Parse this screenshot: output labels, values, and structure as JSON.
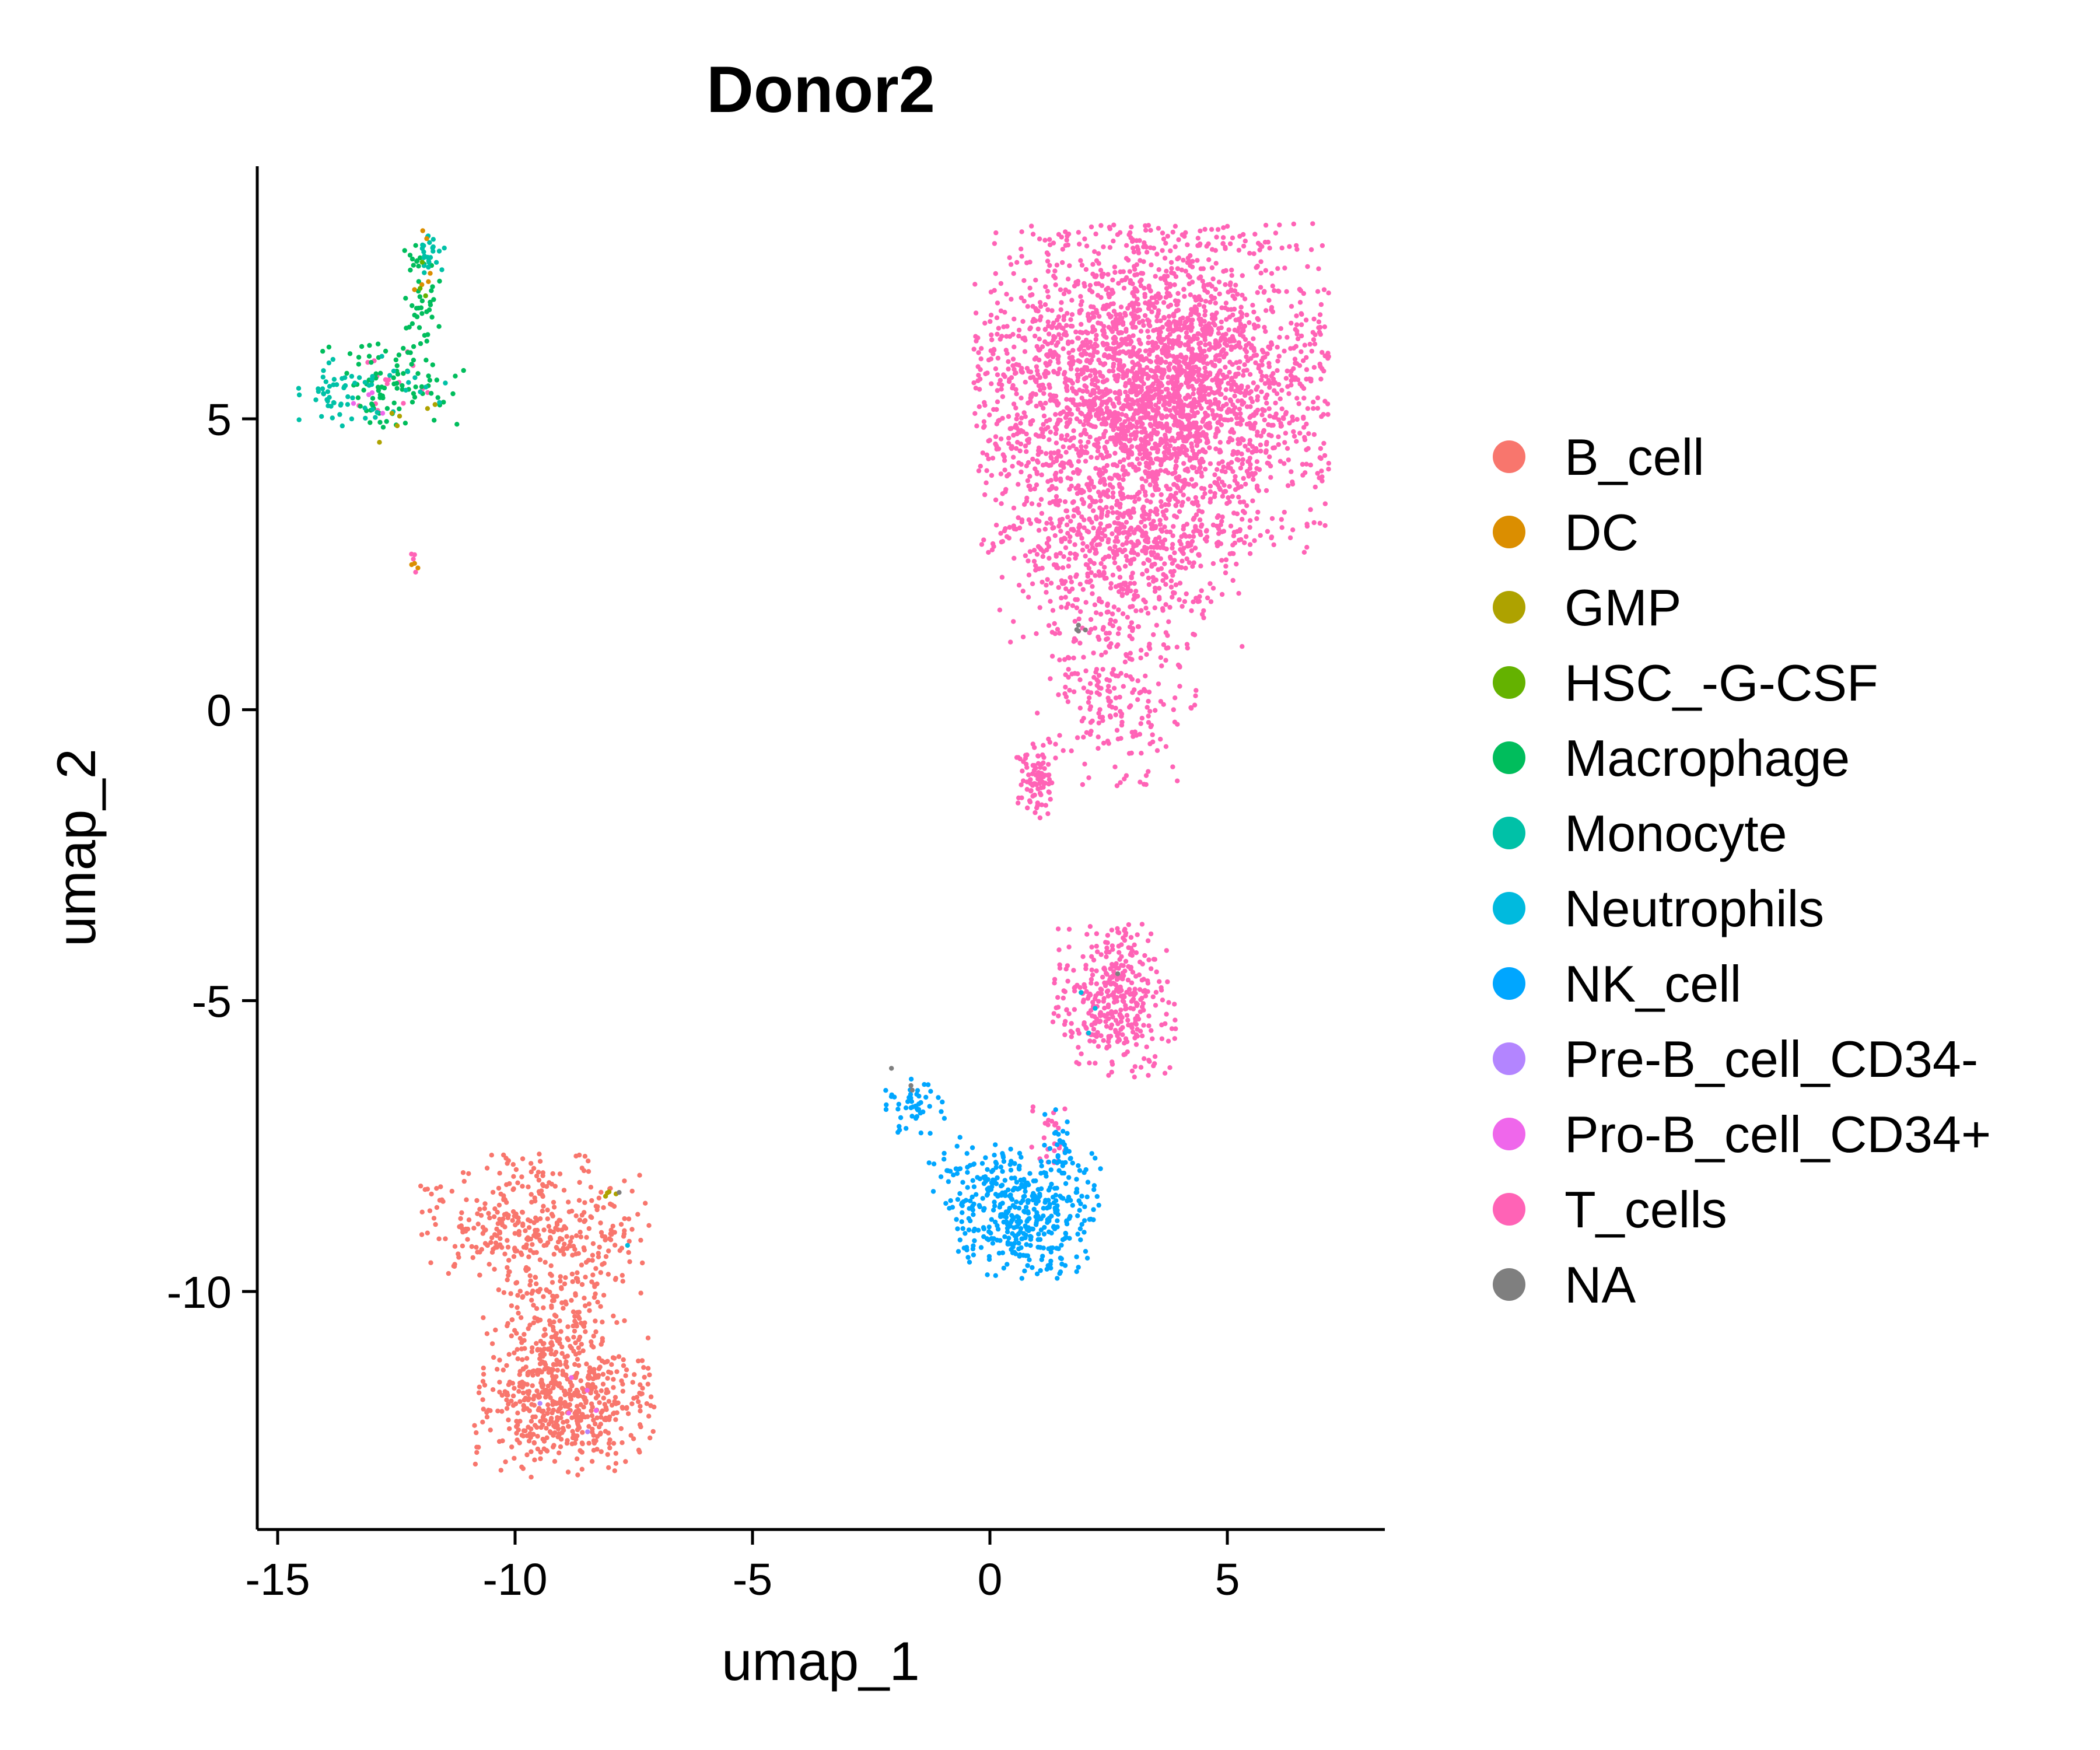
{
  "chart_data": {
    "type": "scatter",
    "title": "Donor2",
    "xlabel": "umap_1",
    "ylabel": "umap_2",
    "xlim": [
      -15.4,
      8.5
    ],
    "ylim": [
      -13.9,
      9.3
    ],
    "xticks": [
      -15,
      -10,
      -5,
      0,
      5
    ],
    "xtick_labels": [
      "-15",
      "-10",
      "-5",
      "0",
      "5"
    ],
    "yticks": [
      5,
      0,
      -5,
      -10
    ],
    "ytick_labels": [
      "5",
      "0",
      "-5",
      "-10"
    ],
    "grid": false,
    "legend_position": "right",
    "series": [
      {
        "name": "B_cell",
        "color": "#F8766D",
        "clusters": [
          {
            "cx": -9.6,
            "cy": -8.9,
            "sx": 1.1,
            "sy": 0.6,
            "n": 350
          },
          {
            "cx": -9.2,
            "cy": -10.7,
            "sx": 0.7,
            "sy": 0.9,
            "n": 300
          },
          {
            "cx": -9.0,
            "cy": -12.0,
            "sx": 0.9,
            "sy": 0.55,
            "n": 450
          }
        ]
      },
      {
        "name": "DC",
        "color": "#DB8E00",
        "clusters": [
          {
            "cx": -11.8,
            "cy": 7.8,
            "sx": 0.15,
            "sy": 0.3,
            "n": 6
          },
          {
            "cx": -12.1,
            "cy": 2.45,
            "sx": 0.05,
            "sy": 0.1,
            "n": 3
          }
        ]
      },
      {
        "name": "GMP",
        "color": "#AEA200",
        "clusters": [
          {
            "cx": -8.0,
            "cy": -8.3,
            "sx": 0.08,
            "sy": 0.05,
            "n": 4
          },
          {
            "cx": -12.2,
            "cy": 5.0,
            "sx": 0.4,
            "sy": 0.3,
            "n": 6
          }
        ]
      },
      {
        "name": "HSC_-G-CSF",
        "color": "#64B200",
        "clusters": [
          {
            "cx": -11.9,
            "cy": 7.5,
            "sx": 0.1,
            "sy": 0.2,
            "n": 3
          }
        ]
      },
      {
        "name": "Macrophage",
        "color": "#00BD5C",
        "clusters": [
          {
            "cx": -12.6,
            "cy": 5.6,
            "sx": 0.7,
            "sy": 0.35,
            "n": 90
          },
          {
            "cx": -12.0,
            "cy": 6.9,
            "sx": 0.2,
            "sy": 0.5,
            "n": 45
          }
        ]
      },
      {
        "name": "Monocyte",
        "color": "#00C1A7",
        "clusters": [
          {
            "cx": -13.7,
            "cy": 5.4,
            "sx": 0.4,
            "sy": 0.3,
            "n": 45
          },
          {
            "cx": -11.8,
            "cy": 7.9,
            "sx": 0.15,
            "sy": 0.2,
            "n": 25
          },
          {
            "cx": -12.5,
            "cy": 5.5,
            "sx": 0.5,
            "sy": 0.3,
            "n": 20
          }
        ]
      },
      {
        "name": "Neutrophils",
        "color": "#00BADE",
        "clusters": [
          {
            "cx": -7.6,
            "cy": -9.25,
            "sx": 0.03,
            "sy": 0.03,
            "n": 1
          },
          {
            "cx": 1.9,
            "cy": -5.2,
            "sx": 0.15,
            "sy": 0.3,
            "n": 3
          }
        ]
      },
      {
        "name": "NK_cell",
        "color": "#00A6FF",
        "clusters": [
          {
            "cx": 0.8,
            "cy": -8.7,
            "sx": 0.7,
            "sy": 0.5,
            "n": 380
          },
          {
            "cx": -0.2,
            "cy": -8.0,
            "sx": 0.5,
            "sy": 0.3,
            "n": 80
          },
          {
            "cx": -1.6,
            "cy": -6.8,
            "sx": 0.3,
            "sy": 0.25,
            "n": 50
          },
          {
            "cx": 1.4,
            "cy": -7.5,
            "sx": 0.2,
            "sy": 0.3,
            "n": 25
          }
        ]
      },
      {
        "name": "Pre-B_cell_CD34-",
        "color": "#B385FF",
        "clusters": [
          {
            "cx": -9.5,
            "cy": -12.2,
            "sx": 0.5,
            "sy": 0.4,
            "n": 2
          }
        ]
      },
      {
        "name": "Pro-B_cell_CD34+",
        "color": "#EF67EB",
        "clusters": [
          {
            "cx": -8.8,
            "cy": -12.0,
            "sx": 0.5,
            "sy": 0.5,
            "n": 4
          },
          {
            "cx": -12.8,
            "cy": 5.2,
            "sx": 0.6,
            "sy": 0.4,
            "n": 4
          }
        ]
      },
      {
        "name": "T_cells",
        "color": "#FF63B6",
        "clusters": [
          {
            "cx": 3.4,
            "cy": 5.5,
            "sx": 1.7,
            "sy": 1.3,
            "n": 3200
          },
          {
            "cx": 2.8,
            "cy": 2.6,
            "sx": 1.2,
            "sy": 0.7,
            "n": 500
          },
          {
            "cx": 2.7,
            "cy": 0.2,
            "sx": 0.8,
            "sy": 0.7,
            "n": 220
          },
          {
            "cx": 1.0,
            "cy": -1.2,
            "sx": 0.2,
            "sy": 0.3,
            "n": 90
          },
          {
            "cx": 2.6,
            "cy": -5.0,
            "sx": 0.6,
            "sy": 0.6,
            "n": 380
          },
          {
            "cx": 1.3,
            "cy": -7.2,
            "sx": 0.2,
            "sy": 0.3,
            "n": 25
          },
          {
            "cx": -12.8,
            "cy": 5.6,
            "sx": 0.5,
            "sy": 0.3,
            "n": 15
          },
          {
            "cx": -12.15,
            "cy": 2.6,
            "sx": 0.04,
            "sy": 0.12,
            "n": 4
          }
        ]
      },
      {
        "name": "NA",
        "color": "#7F7F7F",
        "clusters": [
          {
            "cx": 1.9,
            "cy": 1.4,
            "sx": 0.08,
            "sy": 0.05,
            "n": 4
          },
          {
            "cx": -7.8,
            "cy": -8.3,
            "sx": 0.03,
            "sy": 0.02,
            "n": 1
          },
          {
            "cx": -2.1,
            "cy": -6.1,
            "sx": 0.03,
            "sy": 0.03,
            "n": 1
          },
          {
            "cx": -1.7,
            "cy": -6.5,
            "sx": 0.05,
            "sy": 0.05,
            "n": 2
          },
          {
            "cx": 2.7,
            "cy": -4.5,
            "sx": 0.03,
            "sy": 0.03,
            "n": 1
          }
        ]
      }
    ]
  }
}
